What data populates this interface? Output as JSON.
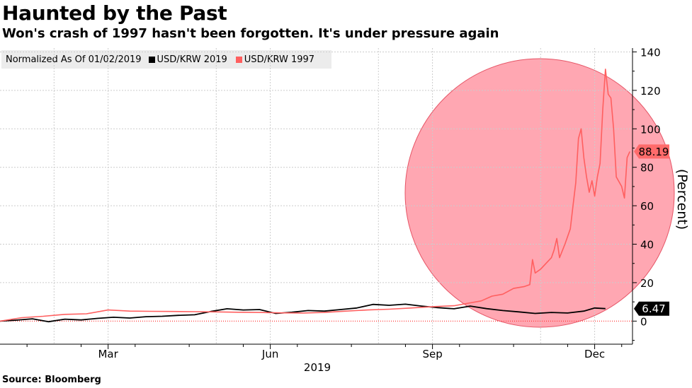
{
  "title": "Haunted by the Past",
  "subtitle": "Won's crash of 1997 hasn't been forgotten. It's under pressure again",
  "source": "Source: Bloomberg",
  "colors": {
    "series_2019": "#000000",
    "series_1997": "#ff5f5f",
    "highlight": "#ff98a4"
  },
  "legend": {
    "normalized": "Normalized As Of 01/02/2019",
    "items": [
      {
        "label": "USD/KRW 2019",
        "color": "#000000"
      },
      {
        "label": "USD/KRW 1997",
        "color": "#ff5f5f"
      }
    ]
  },
  "chart_data": {
    "type": "line",
    "title": "Haunted by the Past",
    "xlabel": "2019",
    "ylabel": "(Percent)",
    "ylim": [
      -12,
      142
    ],
    "yticks": [
      0,
      20,
      40,
      60,
      80,
      100,
      120,
      140
    ],
    "xlim": [
      0,
      11.7
    ],
    "xticks": [
      {
        "x": 2.0,
        "label": "Mar"
      },
      {
        "x": 5.0,
        "label": "Jun"
      },
      {
        "x": 8.0,
        "label": "Sep"
      },
      {
        "x": 11.0,
        "label": "Dec"
      }
    ],
    "grid": true,
    "series": [
      {
        "name": "USD/KRW 2019",
        "color": "#000000",
        "last_label": "6.47",
        "points": [
          [
            0,
            0
          ],
          [
            0.3,
            0.5
          ],
          [
            0.6,
            1.2
          ],
          [
            0.9,
            -0.3
          ],
          [
            1.2,
            1.0
          ],
          [
            1.5,
            0.6
          ],
          [
            1.8,
            1.4
          ],
          [
            2.1,
            2.0
          ],
          [
            2.4,
            1.6
          ],
          [
            2.7,
            2.3
          ],
          [
            3.0,
            2.5
          ],
          [
            3.3,
            3.0
          ],
          [
            3.6,
            3.3
          ],
          [
            3.9,
            5.0
          ],
          [
            4.2,
            6.4
          ],
          [
            4.5,
            5.8
          ],
          [
            4.8,
            6.0
          ],
          [
            5.1,
            4.0
          ],
          [
            5.4,
            4.6
          ],
          [
            5.7,
            5.5
          ],
          [
            6.0,
            5.2
          ],
          [
            6.3,
            6.0
          ],
          [
            6.6,
            6.8
          ],
          [
            6.9,
            8.7
          ],
          [
            7.2,
            8.2
          ],
          [
            7.5,
            8.8
          ],
          [
            7.8,
            7.8
          ],
          [
            8.1,
            7.0
          ],
          [
            8.4,
            6.4
          ],
          [
            8.7,
            7.8
          ],
          [
            9.0,
            6.5
          ],
          [
            9.3,
            5.5
          ],
          [
            9.6,
            4.8
          ],
          [
            9.9,
            4.0
          ],
          [
            10.2,
            4.5
          ],
          [
            10.5,
            4.2
          ],
          [
            10.8,
            5.2
          ],
          [
            11.0,
            6.8
          ],
          [
            11.2,
            6.47
          ]
        ]
      },
      {
        "name": "USD/KRW 1997",
        "color": "#ff5f5f",
        "last_label": "88.19",
        "points": [
          [
            0,
            0
          ],
          [
            0.4,
            1.8
          ],
          [
            0.8,
            2.5
          ],
          [
            1.2,
            3.5
          ],
          [
            1.6,
            3.8
          ],
          [
            2.0,
            5.8
          ],
          [
            2.4,
            5.2
          ],
          [
            2.8,
            5.1
          ],
          [
            3.2,
            5.0
          ],
          [
            3.6,
            4.9
          ],
          [
            4.0,
            4.8
          ],
          [
            4.4,
            4.6
          ],
          [
            4.8,
            4.5
          ],
          [
            5.2,
            4.3
          ],
          [
            5.6,
            4.2
          ],
          [
            6.0,
            4.5
          ],
          [
            6.4,
            5.2
          ],
          [
            6.8,
            5.8
          ],
          [
            7.2,
            6.2
          ],
          [
            7.6,
            6.8
          ],
          [
            8.0,
            7.5
          ],
          [
            8.4,
            8.0
          ],
          [
            8.7,
            9.5
          ],
          [
            8.9,
            10.5
          ],
          [
            9.1,
            13.0
          ],
          [
            9.3,
            14.0
          ],
          [
            9.5,
            17.0
          ],
          [
            9.7,
            18.0
          ],
          [
            9.8,
            19.0
          ],
          [
            9.85,
            32.0
          ],
          [
            9.9,
            25.0
          ],
          [
            10.0,
            27.0
          ],
          [
            10.1,
            30.0
          ],
          [
            10.2,
            33.0
          ],
          [
            10.25,
            37.0
          ],
          [
            10.3,
            43.0
          ],
          [
            10.35,
            33.0
          ],
          [
            10.45,
            40.0
          ],
          [
            10.55,
            48.0
          ],
          [
            10.6,
            60.0
          ],
          [
            10.65,
            72.0
          ],
          [
            10.7,
            95.0
          ],
          [
            10.75,
            100.0
          ],
          [
            10.8,
            85.0
          ],
          [
            10.85,
            75.0
          ],
          [
            10.9,
            67.0
          ],
          [
            10.95,
            73.0
          ],
          [
            11.0,
            65.0
          ],
          [
            11.05,
            75.0
          ],
          [
            11.1,
            82.0
          ],
          [
            11.15,
            110.0
          ],
          [
            11.2,
            131.0
          ],
          [
            11.25,
            118.0
          ],
          [
            11.3,
            116.0
          ],
          [
            11.35,
            100.0
          ],
          [
            11.4,
            75.0
          ],
          [
            11.5,
            70.0
          ],
          [
            11.55,
            64.0
          ],
          [
            11.6,
            85.0
          ],
          [
            11.65,
            88.19
          ]
        ]
      }
    ]
  }
}
